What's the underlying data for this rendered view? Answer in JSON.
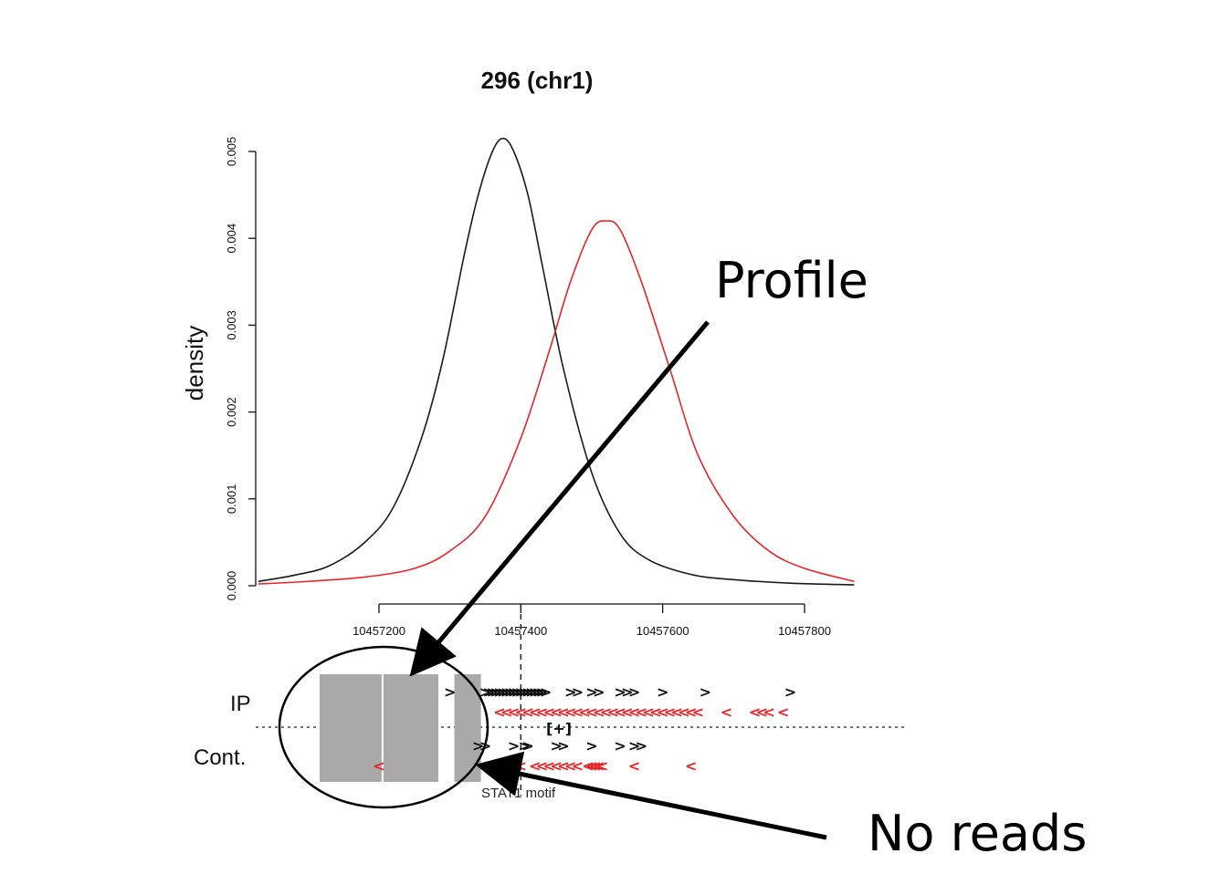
{
  "chart_data": {
    "type": "line",
    "title": "296 (chr1)",
    "xlabel": "",
    "ylabel": "density",
    "xlim": [
      10457030,
      10457870
    ],
    "ylim": [
      0,
      0.005
    ],
    "xticks": [
      10457200,
      10457400,
      10457600,
      10457800
    ],
    "xtick_labels": [
      "10457200",
      "10457400",
      "10457600",
      "10457800"
    ],
    "yticks": [
      0.0,
      0.001,
      0.002,
      0.003,
      0.004,
      0.005
    ],
    "ytick_labels": [
      "0.000",
      "0.001",
      "0.002",
      "0.003",
      "0.004",
      "0.005"
    ],
    "grid": false,
    "legend": "none",
    "motif_position": 10457400,
    "series": [
      {
        "color": "#1a1a1a",
        "x": [
          10457030,
          10457080,
          10457130,
          10457180,
          10457220,
          10457260,
          10457290,
          10457320,
          10457340,
          10457360,
          10457375,
          10457390,
          10457410,
          10457430,
          10457460,
          10457500,
          10457540,
          10457580,
          10457640,
          10457700,
          10457780,
          10457870
        ],
        "y": [
          5e-05,
          0.00012,
          0.00023,
          0.0005,
          0.0009,
          0.0017,
          0.0026,
          0.0038,
          0.0045,
          0.005,
          0.00515,
          0.005,
          0.0045,
          0.0037,
          0.0025,
          0.0013,
          0.0006,
          0.0003,
          0.00013,
          7e-05,
          3e-05,
          1e-05
        ]
      },
      {
        "color": "#e8262a",
        "x": [
          10457030,
          10457100,
          10457180,
          10457250,
          10457300,
          10457350,
          10457400,
          10457440,
          10457470,
          10457500,
          10457520,
          10457540,
          10457570,
          10457610,
          10457650,
          10457700,
          10457750,
          10457800,
          10457870
        ],
        "y": [
          2e-05,
          5e-05,
          0.0001,
          0.0002,
          0.0004,
          0.0008,
          0.0017,
          0.0027,
          0.0035,
          0.0041,
          0.0042,
          0.0041,
          0.0035,
          0.0025,
          0.0015,
          0.0008,
          0.0004,
          0.0002,
          5e-05
        ]
      }
    ],
    "tracks": {
      "ip_label": "IP",
      "control_label": "Cont.",
      "motif_label": "STAT1 motif",
      "motif_bracket": "[+]",
      "no_read_regions": [
        [
          10457115,
          10457205
        ],
        [
          10457205,
          10457285
        ],
        [
          10457305,
          10457345
        ]
      ],
      "ip_plus_x": [
        10457300,
        10457350,
        10457355,
        10457360,
        10457365,
        10457370,
        10457375,
        10457380,
        10457385,
        10457390,
        10457395,
        10457400,
        10457405,
        10457410,
        10457415,
        10457420,
        10457425,
        10457430,
        10457435,
        10457470,
        10457480,
        10457500,
        10457510,
        10457540,
        10457550,
        10457560,
        10457600,
        10457660,
        10457780
      ],
      "ip_minus_x": [
        10457370,
        10457380,
        10457390,
        10457400,
        10457410,
        10457420,
        10457430,
        10457440,
        10457450,
        10457460,
        10457470,
        10457480,
        10457490,
        10457500,
        10457510,
        10457520,
        10457530,
        10457540,
        10457550,
        10457560,
        10457570,
        10457580,
        10457590,
        10457600,
        10457610,
        10457620,
        10457630,
        10457640,
        10457650,
        10457690,
        10457730,
        10457740,
        10457750,
        10457770
      ],
      "cont_plus_x": [
        10457340,
        10457350,
        10457390,
        10457405,
        10457410,
        10457450,
        10457460,
        10457500,
        10457540,
        10457560,
        10457570
      ],
      "cont_minus_x": [
        10457200,
        10457370,
        10457400,
        10457420,
        10457430,
        10457440,
        10457450,
        10457460,
        10457470,
        10457480,
        10457495,
        10457500,
        10457505,
        10457510,
        10457515,
        10457560,
        10457640
      ]
    }
  },
  "annotations": {
    "profile_label": "Profile",
    "no_reads_label": "No reads"
  },
  "colors": {
    "ip_series": "#1a1a1a",
    "control_series": "#e8262a",
    "no_read_block": "#a9a9a9"
  }
}
